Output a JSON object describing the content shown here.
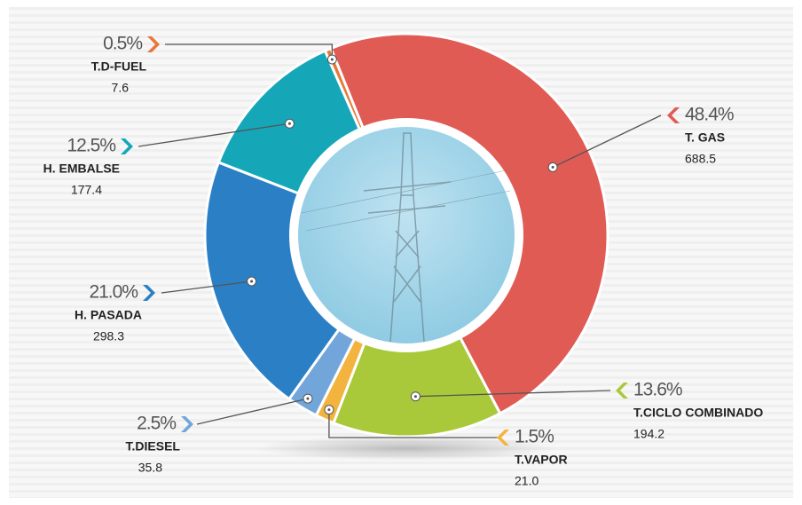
{
  "chart_data": {
    "type": "donut",
    "categories": [
      "T. GAS",
      "T.CICLO COMBINADO",
      "T.VAPOR",
      "T.DIESEL",
      "H. PASADA",
      "H. EMBALSE",
      "T.D-FUEL"
    ],
    "values": [
      688.5,
      194.2,
      21.0,
      35.8,
      298.3,
      177.4,
      7.6
    ],
    "value_labels": [
      "688.5",
      "194.2",
      "21.0",
      "35.8",
      "298.3",
      "177.4",
      "7.6"
    ],
    "shares": [
      48.4,
      13.6,
      1.5,
      2.5,
      21.0,
      12.5,
      0.5
    ],
    "share_labels": [
      "48.4%",
      "13.6%",
      "1.5%",
      "2.5%",
      "21.0%",
      "12.5%",
      "0.5%"
    ],
    "colors": [
      "#e15b55",
      "#a9c93b",
      "#f2b43f",
      "#72a6da",
      "#2b80c5",
      "#15a7b8",
      "#e8773a"
    ]
  }
}
